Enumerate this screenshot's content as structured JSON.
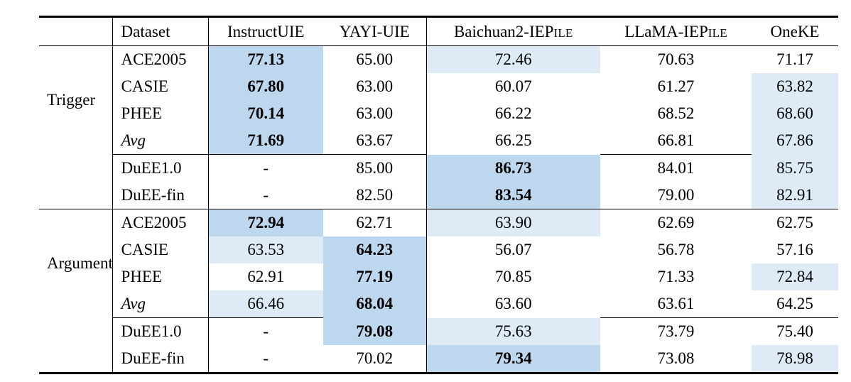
{
  "page": {
    "background": "#ffffff"
  },
  "colors": {
    "best_fill": "#BDD7EE",
    "second_fill": "#DEEBF7",
    "rule": "#000000"
  },
  "table": {
    "header": {
      "section_col": "",
      "dataset_col": "Dataset",
      "models": [
        {
          "pre": "InstructUIE",
          "sc": ""
        },
        {
          "pre": "YAYI-UIE",
          "sc": ""
        },
        {
          "pre": "Baichuan2-IEP",
          "sc": "ILE"
        },
        {
          "pre": "LLaMA-IEP",
          "sc": "ILE"
        },
        {
          "pre": "OneKE",
          "sc": ""
        }
      ]
    },
    "sections": [
      {
        "label": "Trigger",
        "rows": [
          {
            "dataset": "ACE2005",
            "italic": false,
            "cline": false,
            "cells": [
              {
                "v": "77.13",
                "hl": "best",
                "bold": true
              },
              {
                "v": "65.00",
                "hl": "",
                "bold": false
              },
              {
                "v": "72.46",
                "hl": "second",
                "bold": false
              },
              {
                "v": "70.63",
                "hl": "",
                "bold": false
              },
              {
                "v": "71.17",
                "hl": "",
                "bold": false
              }
            ]
          },
          {
            "dataset": "CASIE",
            "italic": false,
            "cline": false,
            "cells": [
              {
                "v": "67.80",
                "hl": "best",
                "bold": true
              },
              {
                "v": "63.00",
                "hl": "",
                "bold": false
              },
              {
                "v": "60.07",
                "hl": "",
                "bold": false
              },
              {
                "v": "61.27",
                "hl": "",
                "bold": false
              },
              {
                "v": "63.82",
                "hl": "second",
                "bold": false
              }
            ]
          },
          {
            "dataset": "PHEE",
            "italic": false,
            "cline": false,
            "cells": [
              {
                "v": "70.14",
                "hl": "best",
                "bold": true
              },
              {
                "v": "63.00",
                "hl": "",
                "bold": false
              },
              {
                "v": "66.22",
                "hl": "",
                "bold": false
              },
              {
                "v": "68.52",
                "hl": "",
                "bold": false
              },
              {
                "v": "68.60",
                "hl": "second",
                "bold": false
              }
            ]
          },
          {
            "dataset": "Avg",
            "italic": true,
            "cline": false,
            "cells": [
              {
                "v": "71.69",
                "hl": "best",
                "bold": true
              },
              {
                "v": "63.67",
                "hl": "",
                "bold": false
              },
              {
                "v": "66.25",
                "hl": "",
                "bold": false
              },
              {
                "v": "66.81",
                "hl": "",
                "bold": false
              },
              {
                "v": "67.86",
                "hl": "second",
                "bold": false
              }
            ]
          },
          {
            "dataset": "DuEE1.0",
            "italic": false,
            "cline": true,
            "cells": [
              {
                "v": "-",
                "hl": "",
                "bold": false
              },
              {
                "v": "85.00",
                "hl": "",
                "bold": false
              },
              {
                "v": "86.73",
                "hl": "best",
                "bold": true
              },
              {
                "v": "84.01",
                "hl": "",
                "bold": false
              },
              {
                "v": "85.75",
                "hl": "second",
                "bold": false
              }
            ]
          },
          {
            "dataset": "DuEE-fin",
            "italic": false,
            "cline": false,
            "cells": [
              {
                "v": "-",
                "hl": "",
                "bold": false
              },
              {
                "v": "82.50",
                "hl": "",
                "bold": false
              },
              {
                "v": "83.54",
                "hl": "best",
                "bold": true
              },
              {
                "v": "79.00",
                "hl": "",
                "bold": false
              },
              {
                "v": "82.91",
                "hl": "second",
                "bold": false
              }
            ]
          }
        ]
      },
      {
        "label": "Argument",
        "rows": [
          {
            "dataset": "ACE2005",
            "italic": false,
            "cline": false,
            "cells": [
              {
                "v": "72.94",
                "hl": "best",
                "bold": true
              },
              {
                "v": "62.71",
                "hl": "",
                "bold": false
              },
              {
                "v": "63.90",
                "hl": "second",
                "bold": false
              },
              {
                "v": "62.69",
                "hl": "",
                "bold": false
              },
              {
                "v": "62.75",
                "hl": "",
                "bold": false
              }
            ]
          },
          {
            "dataset": "CASIE",
            "italic": false,
            "cline": false,
            "cells": [
              {
                "v": "63.53",
                "hl": "second",
                "bold": false
              },
              {
                "v": "64.23",
                "hl": "best",
                "bold": true
              },
              {
                "v": "56.07",
                "hl": "",
                "bold": false
              },
              {
                "v": "56.78",
                "hl": "",
                "bold": false
              },
              {
                "v": "57.16",
                "hl": "",
                "bold": false
              }
            ]
          },
          {
            "dataset": "PHEE",
            "italic": false,
            "cline": false,
            "cells": [
              {
                "v": "62.91",
                "hl": "",
                "bold": false
              },
              {
                "v": "77.19",
                "hl": "best",
                "bold": true
              },
              {
                "v": "70.85",
                "hl": "",
                "bold": false
              },
              {
                "v": "71.33",
                "hl": "",
                "bold": false
              },
              {
                "v": "72.84",
                "hl": "second",
                "bold": false
              }
            ]
          },
          {
            "dataset": "Avg",
            "italic": true,
            "cline": false,
            "cells": [
              {
                "v": "66.46",
                "hl": "second",
                "bold": false
              },
              {
                "v": "68.04",
                "hl": "best",
                "bold": true
              },
              {
                "v": "63.60",
                "hl": "",
                "bold": false
              },
              {
                "v": "63.61",
                "hl": "",
                "bold": false
              },
              {
                "v": "64.25",
                "hl": "",
                "bold": false
              }
            ]
          },
          {
            "dataset": "DuEE1.0",
            "italic": false,
            "cline": true,
            "cells": [
              {
                "v": "-",
                "hl": "",
                "bold": false
              },
              {
                "v": "79.08",
                "hl": "best",
                "bold": true
              },
              {
                "v": "75.63",
                "hl": "second",
                "bold": false
              },
              {
                "v": "73.79",
                "hl": "",
                "bold": false
              },
              {
                "v": "75.40",
                "hl": "",
                "bold": false
              }
            ]
          },
          {
            "dataset": "DuEE-fin",
            "italic": false,
            "cline": false,
            "cells": [
              {
                "v": "-",
                "hl": "",
                "bold": false
              },
              {
                "v": "70.02",
                "hl": "",
                "bold": false
              },
              {
                "v": "79.34",
                "hl": "best",
                "bold": true
              },
              {
                "v": "73.08",
                "hl": "",
                "bold": false
              },
              {
                "v": "78.98",
                "hl": "second",
                "bold": false
              }
            ]
          }
        ]
      }
    ]
  }
}
